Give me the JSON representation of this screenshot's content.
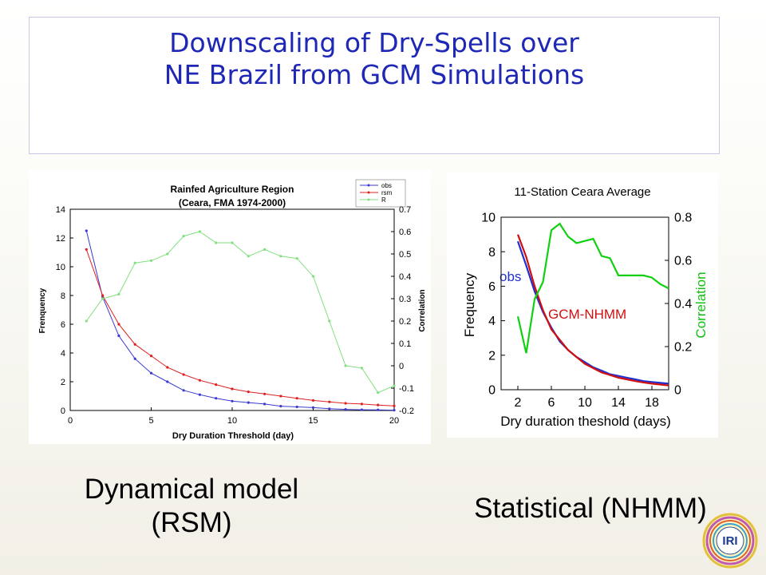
{
  "slide": {
    "title_line1": "Downscaling of Dry-Spells over",
    "title_line2": "NE Brazil from GCM Simulations",
    "caption_left_line1": "Dynamical model",
    "caption_left_line2": "(RSM)",
    "caption_right": "Statistical (NHMM)",
    "logo_text": "IRI"
  },
  "chart_data": [
    {
      "type": "line",
      "title": "Rainfed Agriculture Region",
      "subtitle": "(Ceara, FMA 1974-2000)",
      "xlabel": "Dry Duration Threshold (day)",
      "ylabel": "Frenquency",
      "y2label": "Correlation",
      "xlim": [
        0,
        20
      ],
      "ylim": [
        0,
        14
      ],
      "y2lim": [
        -0.2,
        0.7
      ],
      "xticks": [
        0,
        5,
        10,
        15,
        20
      ],
      "yticks": [
        0,
        2,
        4,
        6,
        8,
        10,
        12,
        14
      ],
      "y2ticks": [
        -0.2,
        -0.1,
        0,
        0.1,
        0.2,
        0.3,
        0.4,
        0.5,
        0.6,
        0.7
      ],
      "legend_position": "top-right",
      "grid": false,
      "x": [
        1,
        2,
        3,
        4,
        5,
        6,
        7,
        8,
        9,
        10,
        11,
        12,
        13,
        14,
        15,
        16,
        17,
        18,
        19,
        20
      ],
      "series": [
        {
          "name": "obs",
          "axis": "left",
          "color": "#3a3ad0",
          "values": [
            12.5,
            7.9,
            5.2,
            3.6,
            2.6,
            2.0,
            1.4,
            1.1,
            0.85,
            0.65,
            0.55,
            0.45,
            0.3,
            0.25,
            0.2,
            0.12,
            0.08,
            0.05,
            0.04,
            0.02
          ]
        },
        {
          "name": "rsm",
          "axis": "left",
          "color": "#e02020",
          "values": [
            11.2,
            8.0,
            6.0,
            4.6,
            3.8,
            3.0,
            2.5,
            2.1,
            1.8,
            1.5,
            1.3,
            1.15,
            1.0,
            0.85,
            0.7,
            0.6,
            0.5,
            0.45,
            0.38,
            0.32
          ]
        },
        {
          "name": "R",
          "axis": "right",
          "color": "#80e080",
          "values": [
            0.2,
            0.3,
            0.32,
            0.46,
            0.47,
            0.5,
            0.58,
            0.6,
            0.55,
            0.55,
            0.49,
            0.52,
            0.49,
            0.48,
            0.4,
            0.2,
            0.0,
            -0.01,
            -0.12,
            -0.09
          ]
        }
      ]
    },
    {
      "type": "line",
      "title": "11-Station Ceara Average",
      "xlabel": "Dry duration theshold (days)",
      "ylabel": "Frequency",
      "y2label": "Correlation",
      "xlim": [
        0,
        20
      ],
      "ylim": [
        0,
        10
      ],
      "y2lim": [
        0,
        0.8
      ],
      "xticks": [
        2,
        6,
        10,
        14,
        18
      ],
      "yticks": [
        0,
        2,
        4,
        6,
        8,
        10
      ],
      "y2ticks": [
        0,
        0.2,
        0.4,
        0.6,
        0.8
      ],
      "grid": false,
      "x": [
        2,
        3,
        4,
        5,
        6,
        7,
        8,
        9,
        10,
        11,
        12,
        13,
        14,
        15,
        16,
        17,
        18,
        19,
        20
      ],
      "series": [
        {
          "name": "obs",
          "axis": "left",
          "color": "#1f2fd0",
          "values": [
            8.6,
            7.2,
            5.7,
            4.5,
            3.6,
            2.8,
            2.3,
            1.9,
            1.6,
            1.3,
            1.1,
            0.9,
            0.8,
            0.7,
            0.6,
            0.5,
            0.45,
            0.4,
            0.35
          ]
        },
        {
          "name": "GCM-NHMM",
          "axis": "left",
          "color": "#d01010",
          "values": [
            9.0,
            7.7,
            6.0,
            4.6,
            3.5,
            2.9,
            2.3,
            1.9,
            1.5,
            1.25,
            1.0,
            0.85,
            0.7,
            0.6,
            0.5,
            0.42,
            0.35,
            0.3,
            0.25
          ]
        },
        {
          "name": "",
          "axis": "right",
          "color": "#10d010",
          "values": [
            0.34,
            0.17,
            0.42,
            0.5,
            0.74,
            0.77,
            0.71,
            0.68,
            0.69,
            0.7,
            0.62,
            0.61,
            0.53,
            0.53,
            0.53,
            0.53,
            0.52,
            0.49,
            0.47
          ]
        }
      ]
    }
  ]
}
